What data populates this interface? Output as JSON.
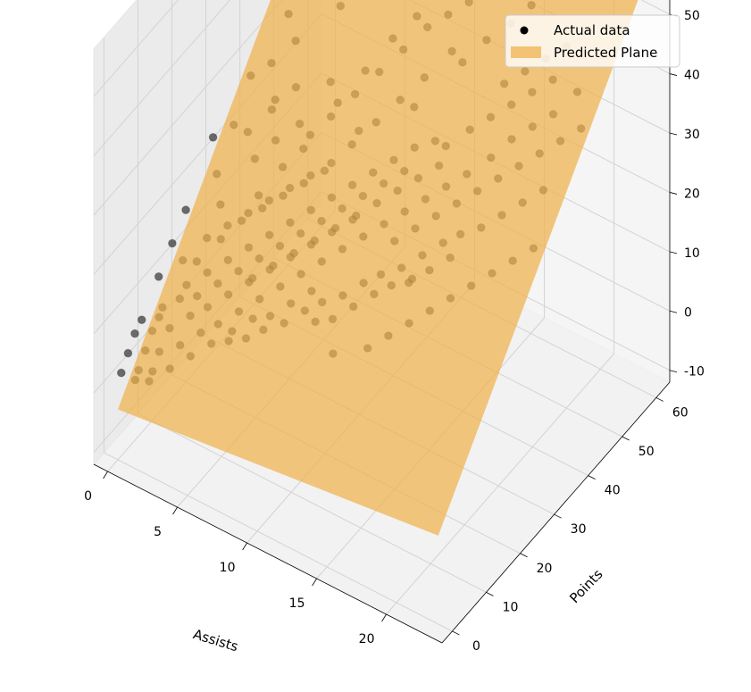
{
  "chart_data": {
    "type": "scatter",
    "projection": "3d",
    "xlabel": "Assists",
    "ylabel": "Points",
    "zlabel": "",
    "xlim": [
      -1,
      24
    ],
    "ylim": [
      -3,
      64
    ],
    "zlim": [
      -12,
      58
    ],
    "x_ticks": [
      0,
      5,
      10,
      15,
      20
    ],
    "y_ticks": [
      0,
      10,
      20,
      30,
      40,
      50,
      60
    ],
    "z_ticks": [
      -10,
      0,
      10,
      20,
      30,
      40,
      50
    ],
    "grid": true,
    "legend": {
      "position": "top-right",
      "entries": [
        "Actual data",
        "Predicted Plane"
      ]
    },
    "colors": {
      "points": "#000000",
      "plane": "#f0b24d"
    },
    "series": [
      {
        "name": "Actual data",
        "kind": "scatter",
        "points": [
          [
            0,
            5,
            6
          ],
          [
            1,
            8,
            8
          ],
          [
            0,
            3,
            4
          ],
          [
            2,
            10,
            11
          ],
          [
            1,
            6,
            7
          ],
          [
            3,
            14,
            14
          ],
          [
            2,
            12,
            12
          ],
          [
            0,
            7,
            7
          ],
          [
            1,
            4,
            5
          ],
          [
            4,
            16,
            16
          ],
          [
            3,
            11,
            12
          ],
          [
            2,
            7,
            8
          ],
          [
            5,
            18,
            18
          ],
          [
            4,
            13,
            14
          ],
          [
            1,
            9,
            9
          ],
          [
            6,
            20,
            20
          ],
          [
            5,
            15,
            16
          ],
          [
            3,
            9,
            10
          ],
          [
            0,
            12,
            11
          ],
          [
            7,
            22,
            22
          ],
          [
            6,
            17,
            18
          ],
          [
            4,
            10,
            12
          ],
          [
            2,
            15,
            14
          ],
          [
            8,
            24,
            24
          ],
          [
            7,
            19,
            20
          ],
          [
            5,
            12,
            14
          ],
          [
            3,
            18,
            17
          ],
          [
            9,
            26,
            26
          ],
          [
            8,
            21,
            22
          ],
          [
            6,
            14,
            16
          ],
          [
            4,
            20,
            20
          ],
          [
            10,
            28,
            28
          ],
          [
            9,
            23,
            24
          ],
          [
            7,
            16,
            18
          ],
          [
            5,
            22,
            22
          ],
          [
            11,
            30,
            30
          ],
          [
            10,
            25,
            26
          ],
          [
            8,
            18,
            20
          ],
          [
            6,
            24,
            24
          ],
          [
            12,
            32,
            32
          ],
          [
            11,
            27,
            28
          ],
          [
            9,
            20,
            22
          ],
          [
            7,
            26,
            26
          ],
          [
            13,
            34,
            34
          ],
          [
            12,
            29,
            30
          ],
          [
            10,
            22,
            24
          ],
          [
            8,
            28,
            28
          ],
          [
            14,
            36,
            35
          ],
          [
            13,
            31,
            32
          ],
          [
            11,
            24,
            26
          ],
          [
            2,
            4,
            6
          ],
          [
            3,
            6,
            7
          ],
          [
            1,
            2,
            3
          ],
          [
            0,
            1,
            2
          ],
          [
            2,
            2,
            4
          ],
          [
            4,
            8,
            9
          ],
          [
            5,
            9,
            11
          ],
          [
            6,
            11,
            13
          ],
          [
            7,
            13,
            15
          ],
          [
            8,
            15,
            17
          ],
          [
            9,
            17,
            19
          ],
          [
            10,
            19,
            21
          ],
          [
            11,
            21,
            23
          ],
          [
            12,
            23,
            25
          ],
          [
            13,
            25,
            27
          ],
          [
            14,
            27,
            29
          ],
          [
            15,
            29,
            31
          ],
          [
            16,
            31,
            33
          ],
          [
            15,
            35,
            36
          ],
          [
            16,
            38,
            38
          ],
          [
            17,
            33,
            35
          ],
          [
            18,
            36,
            37
          ],
          [
            17,
            40,
            40
          ],
          [
            19,
            38,
            40
          ],
          [
            18,
            42,
            42
          ],
          [
            20,
            40,
            42
          ],
          [
            19,
            44,
            44
          ],
          [
            21,
            42,
            44
          ],
          [
            20,
            46,
            46
          ],
          [
            22,
            45,
            47
          ],
          [
            4,
            25,
            21
          ],
          [
            3,
            28,
            24
          ],
          [
            2,
            30,
            26
          ],
          [
            5,
            33,
            29
          ],
          [
            4,
            36,
            32
          ],
          [
            6,
            38,
            34
          ],
          [
            3,
            40,
            36
          ],
          [
            2,
            42,
            38
          ],
          [
            5,
            45,
            41
          ],
          [
            1,
            35,
            31
          ],
          [
            0,
            20,
            17
          ],
          [
            1,
            25,
            21
          ],
          [
            0,
            28,
            24
          ],
          [
            2,
            22,
            19
          ],
          [
            1,
            30,
            26
          ],
          [
            3,
            33,
            29
          ],
          [
            6,
            30,
            28
          ],
          [
            7,
            34,
            32
          ],
          [
            8,
            37,
            35
          ],
          [
            9,
            40,
            38
          ],
          [
            10,
            43,
            41
          ],
          [
            11,
            46,
            44
          ],
          [
            12,
            48,
            46
          ],
          [
            13,
            50,
            48
          ],
          [
            14,
            52,
            50
          ],
          [
            15,
            55,
            53
          ],
          [
            9,
            32,
            31
          ],
          [
            10,
            35,
            34
          ],
          [
            11,
            38,
            37
          ],
          [
            12,
            41,
            40
          ],
          [
            6,
            8,
            10
          ],
          [
            7,
            9,
            11
          ],
          [
            8,
            10,
            13
          ],
          [
            9,
            12,
            14
          ],
          [
            10,
            14,
            16
          ],
          [
            11,
            15,
            18
          ],
          [
            12,
            17,
            19
          ],
          [
            13,
            19,
            21
          ],
          [
            14,
            20,
            23
          ],
          [
            15,
            22,
            24
          ],
          [
            16,
            24,
            26
          ],
          [
            17,
            26,
            28
          ],
          [
            18,
            27,
            30
          ],
          [
            19,
            29,
            31
          ],
          [
            20,
            31,
            33
          ],
          [
            21,
            33,
            35
          ],
          [
            22,
            35,
            37
          ],
          [
            16,
            20,
            24
          ],
          [
            17,
            22,
            26
          ],
          [
            18,
            24,
            28
          ],
          [
            13,
            45,
            43
          ],
          [
            12,
            38,
            37
          ],
          [
            14,
            44,
            43
          ],
          [
            15,
            47,
            46
          ],
          [
            16,
            50,
            48
          ],
          [
            17,
            52,
            51
          ],
          [
            18,
            55,
            53
          ],
          [
            19,
            58,
            55
          ],
          [
            20,
            60,
            56
          ],
          [
            21,
            62,
            57
          ],
          [
            8,
            12,
            14
          ],
          [
            9,
            14,
            16
          ],
          [
            10,
            16,
            18
          ],
          [
            7,
            11,
            13
          ],
          [
            6,
            9,
            11
          ],
          [
            5,
            7,
            9
          ],
          [
            4,
            5,
            7
          ],
          [
            3,
            3,
            5
          ],
          [
            2,
            1,
            3
          ],
          [
            1,
            1,
            2
          ],
          [
            11,
            13,
            16
          ],
          [
            12,
            14,
            17
          ],
          [
            13,
            16,
            19
          ],
          [
            14,
            18,
            21
          ],
          [
            15,
            19,
            23
          ],
          [
            16,
            21,
            24
          ],
          [
            14,
            24,
            26
          ],
          [
            15,
            26,
            28
          ],
          [
            16,
            28,
            30
          ],
          [
            17,
            30,
            32
          ],
          [
            18,
            32,
            34
          ],
          [
            19,
            34,
            36
          ],
          [
            20,
            36,
            38
          ],
          [
            21,
            38,
            40
          ],
          [
            22,
            40,
            42
          ],
          [
            23,
            42,
            44
          ],
          [
            20,
            50,
            49
          ],
          [
            19,
            48,
            47
          ],
          [
            18,
            46,
            45
          ],
          [
            17,
            44,
            43
          ],
          [
            5,
            28,
            25
          ],
          [
            6,
            32,
            29
          ],
          [
            7,
            36,
            33
          ],
          [
            8,
            40,
            37
          ],
          [
            9,
            44,
            41
          ],
          [
            10,
            47,
            44
          ],
          [
            11,
            50,
            47
          ],
          [
            4,
            30,
            27
          ],
          [
            3,
            34,
            30
          ],
          [
            2,
            37,
            33
          ],
          [
            6,
            15,
            16
          ],
          [
            7,
            17,
            18
          ],
          [
            8,
            19,
            20
          ],
          [
            9,
            21,
            22
          ],
          [
            10,
            23,
            24
          ],
          [
            11,
            25,
            26
          ],
          [
            12,
            27,
            28
          ],
          [
            13,
            29,
            30
          ],
          [
            14,
            31,
            32
          ],
          [
            15,
            33,
            34
          ],
          [
            1,
            15,
            13
          ],
          [
            0,
            16,
            14
          ],
          [
            2,
            18,
            16
          ],
          [
            3,
            20,
            18
          ],
          [
            4,
            22,
            20
          ],
          [
            5,
            24,
            22
          ],
          [
            6,
            26,
            24
          ],
          [
            7,
            28,
            26
          ],
          [
            8,
            30,
            28
          ],
          [
            9,
            34,
            32
          ],
          [
            15,
            12,
            17
          ],
          [
            16,
            14,
            19
          ],
          [
            17,
            16,
            21
          ],
          [
            18,
            18,
            23
          ],
          [
            19,
            20,
            25
          ],
          [
            20,
            22,
            27
          ],
          [
            21,
            24,
            29
          ],
          [
            22,
            26,
            31
          ],
          [
            23,
            28,
            33
          ],
          [
            13,
            10,
            15
          ]
        ]
      },
      {
        "name": "Predicted Plane",
        "kind": "surface",
        "equation": "z = -3.5 + 0.28 * Assists + 0.88 * Points",
        "corners": [
          [
            0,
            0,
            -3.5
          ],
          [
            23,
            0,
            2.9
          ],
          [
            23,
            63,
            58.4
          ],
          [
            0,
            63,
            52.0
          ]
        ]
      }
    ]
  }
}
